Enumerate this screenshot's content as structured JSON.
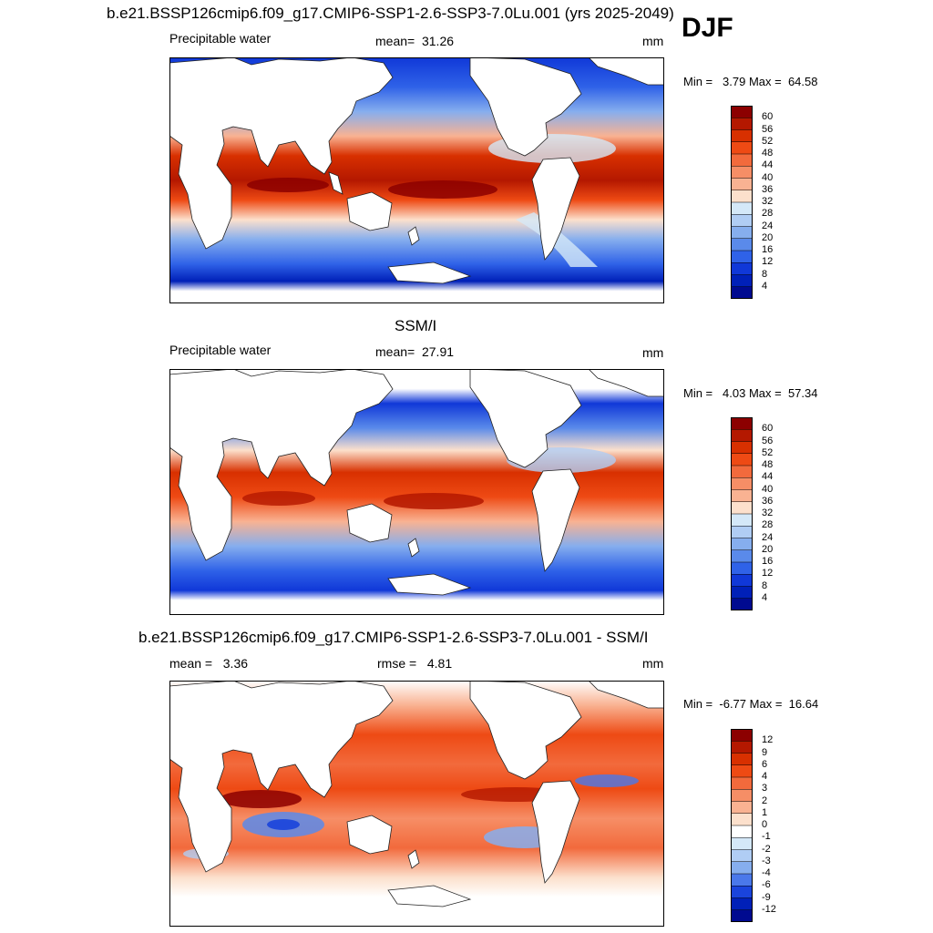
{
  "figure": {
    "season": "DJF"
  },
  "chart_data": [
    {
      "type": "heatmap",
      "title": "b.e21.BSSP126cmip6.f09_g17.CMIP6-SSP1-2.6-SSP3-7.0Lu.001 (yrs 2025-2049)",
      "left_label": "Precipitable water",
      "stat_label": "mean=",
      "stat_value": "31.26",
      "units": "mm",
      "min_label": "Min =",
      "min_value": "3.79",
      "max_label": "Max =",
      "max_value": "64.58",
      "colorbar": {
        "levels": [
          "60",
          "56",
          "52",
          "48",
          "44",
          "40",
          "36",
          "32",
          "28",
          "24",
          "20",
          "16",
          "12",
          "8",
          "4"
        ],
        "colors": [
          "#8c0000",
          "#b41800",
          "#d83000",
          "#ee4a14",
          "#f26a3c",
          "#f68e66",
          "#f9b292",
          "#fce0cc",
          "#d4e8f8",
          "#b0cdf4",
          "#86aeee",
          "#5a8aea",
          "#2f62e8",
          "#1038d8",
          "#0020b8",
          "#000a90"
        ]
      }
    },
    {
      "type": "heatmap",
      "title": "SSM/I",
      "left_label": "Precipitable water",
      "stat_label": "mean=",
      "stat_value": "27.91",
      "units": "mm",
      "min_label": "Min =",
      "min_value": "4.03",
      "max_label": "Max =",
      "max_value": "57.34",
      "colorbar": {
        "levels": [
          "60",
          "56",
          "52",
          "48",
          "44",
          "40",
          "36",
          "32",
          "28",
          "24",
          "20",
          "16",
          "12",
          "8",
          "4"
        ],
        "colors": [
          "#8c0000",
          "#b41800",
          "#d83000",
          "#ee4a14",
          "#f26a3c",
          "#f68e66",
          "#f9b292",
          "#fce0cc",
          "#d4e8f8",
          "#b0cdf4",
          "#86aeee",
          "#5a8aea",
          "#2f62e8",
          "#1038d8",
          "#0020b8",
          "#000a90"
        ]
      }
    },
    {
      "type": "heatmap",
      "title": "b.e21.BSSP126cmip6.f09_g17.CMIP6-SSP1-2.6-SSP3-7.0Lu.001 - SSM/I",
      "left_label": "mean =",
      "left_value": "3.36",
      "stat_label": "rmse =",
      "stat_value": "4.81",
      "units": "mm",
      "min_label": "Min =",
      "min_value": "-6.77",
      "max_label": "Max =",
      "max_value": "16.64",
      "colorbar": {
        "levels": [
          "12",
          "9",
          "6",
          "4",
          "3",
          "2",
          "1",
          "0",
          "-1",
          "-2",
          "-3",
          "-4",
          "-6",
          "-9",
          "-12"
        ],
        "colors": [
          "#8c0000",
          "#b41800",
          "#d83000",
          "#ee4a14",
          "#f26a3c",
          "#f68e66",
          "#f9b292",
          "#fce0cc",
          "#ffffff",
          "#d4e8f8",
          "#b0cdf4",
          "#86aeee",
          "#4a78ea",
          "#1a44dc",
          "#0020b8",
          "#000a90"
        ]
      }
    }
  ]
}
